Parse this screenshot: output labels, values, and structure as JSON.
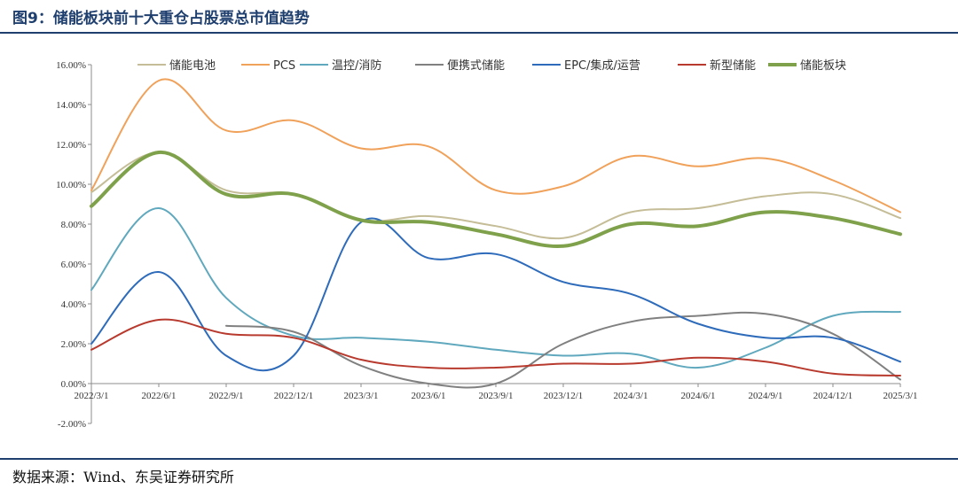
{
  "header": {
    "title": "图9：储能板块前十大重仓占股票总市值趋势"
  },
  "footer": {
    "source": "数据来源：Wind、东吴证券研究所"
  },
  "chart_data": {
    "type": "line",
    "title": "",
    "xlabel": "",
    "ylabel": "",
    "ylim": [
      -2,
      16
    ],
    "y_ticks": [
      -2,
      0,
      2,
      4,
      6,
      8,
      10,
      12,
      14,
      16
    ],
    "y_tick_labels": [
      "-2.00%",
      "0.00%",
      "2.00%",
      "4.00%",
      "6.00%",
      "8.00%",
      "10.00%",
      "12.00%",
      "14.00%",
      "16.00%"
    ],
    "x": [
      "2022/3/1",
      "2022/6/1",
      "2022/9/1",
      "2022/12/1",
      "2023/3/1",
      "2023/6/1",
      "2023/9/1",
      "2023/12/1",
      "2024/3/1",
      "2024/6/1",
      "2024/9/1",
      "2024/12/1",
      "2025/3/1"
    ],
    "legend_position": "top",
    "grid": false,
    "series": [
      {
        "name": "储能电池",
        "color": "#c4bd97",
        "width": 2,
        "values": [
          9.6,
          11.6,
          9.7,
          9.5,
          8.2,
          8.4,
          7.9,
          7.3,
          8.6,
          8.8,
          9.4,
          9.5,
          8.3
        ]
      },
      {
        "name": "PCS",
        "color": "#f0a15a",
        "width": 2,
        "values": [
          9.7,
          15.2,
          12.7,
          13.2,
          11.8,
          11.9,
          9.7,
          9.9,
          11.4,
          10.9,
          11.3,
          10.2,
          8.6
        ]
      },
      {
        "name": "温控/消防",
        "color": "#5fa8bd",
        "width": 2,
        "values": [
          4.7,
          8.8,
          4.3,
          2.4,
          2.3,
          2.1,
          1.7,
          1.4,
          1.5,
          0.8,
          1.8,
          3.4,
          3.6
        ]
      },
      {
        "name": "便携式储能",
        "color": "#808080",
        "width": 2,
        "values": [
          null,
          null,
          2.9,
          2.6,
          0.9,
          0.0,
          0.0,
          2.0,
          3.1,
          3.4,
          3.5,
          2.5,
          0.2
        ]
      },
      {
        "name": "EPC/集成/运营",
        "color": "#2e6bba",
        "width": 2,
        "values": [
          2.0,
          5.6,
          1.4,
          1.4,
          8.1,
          6.3,
          6.5,
          5.1,
          4.5,
          3.0,
          2.3,
          2.3,
          1.1
        ]
      },
      {
        "name": "新型储能",
        "color": "#b83a2e",
        "width": 2,
        "values": [
          1.7,
          3.2,
          2.5,
          2.3,
          1.2,
          0.8,
          0.8,
          1.0,
          1.0,
          1.3,
          1.1,
          0.5,
          0.4
        ]
      },
      {
        "name": "储能板块",
        "color": "#7fa14b",
        "width": 4,
        "values": [
          8.9,
          11.6,
          9.5,
          9.5,
          8.2,
          8.1,
          7.5,
          6.9,
          8.0,
          7.9,
          8.6,
          8.3,
          7.5
        ]
      }
    ]
  }
}
